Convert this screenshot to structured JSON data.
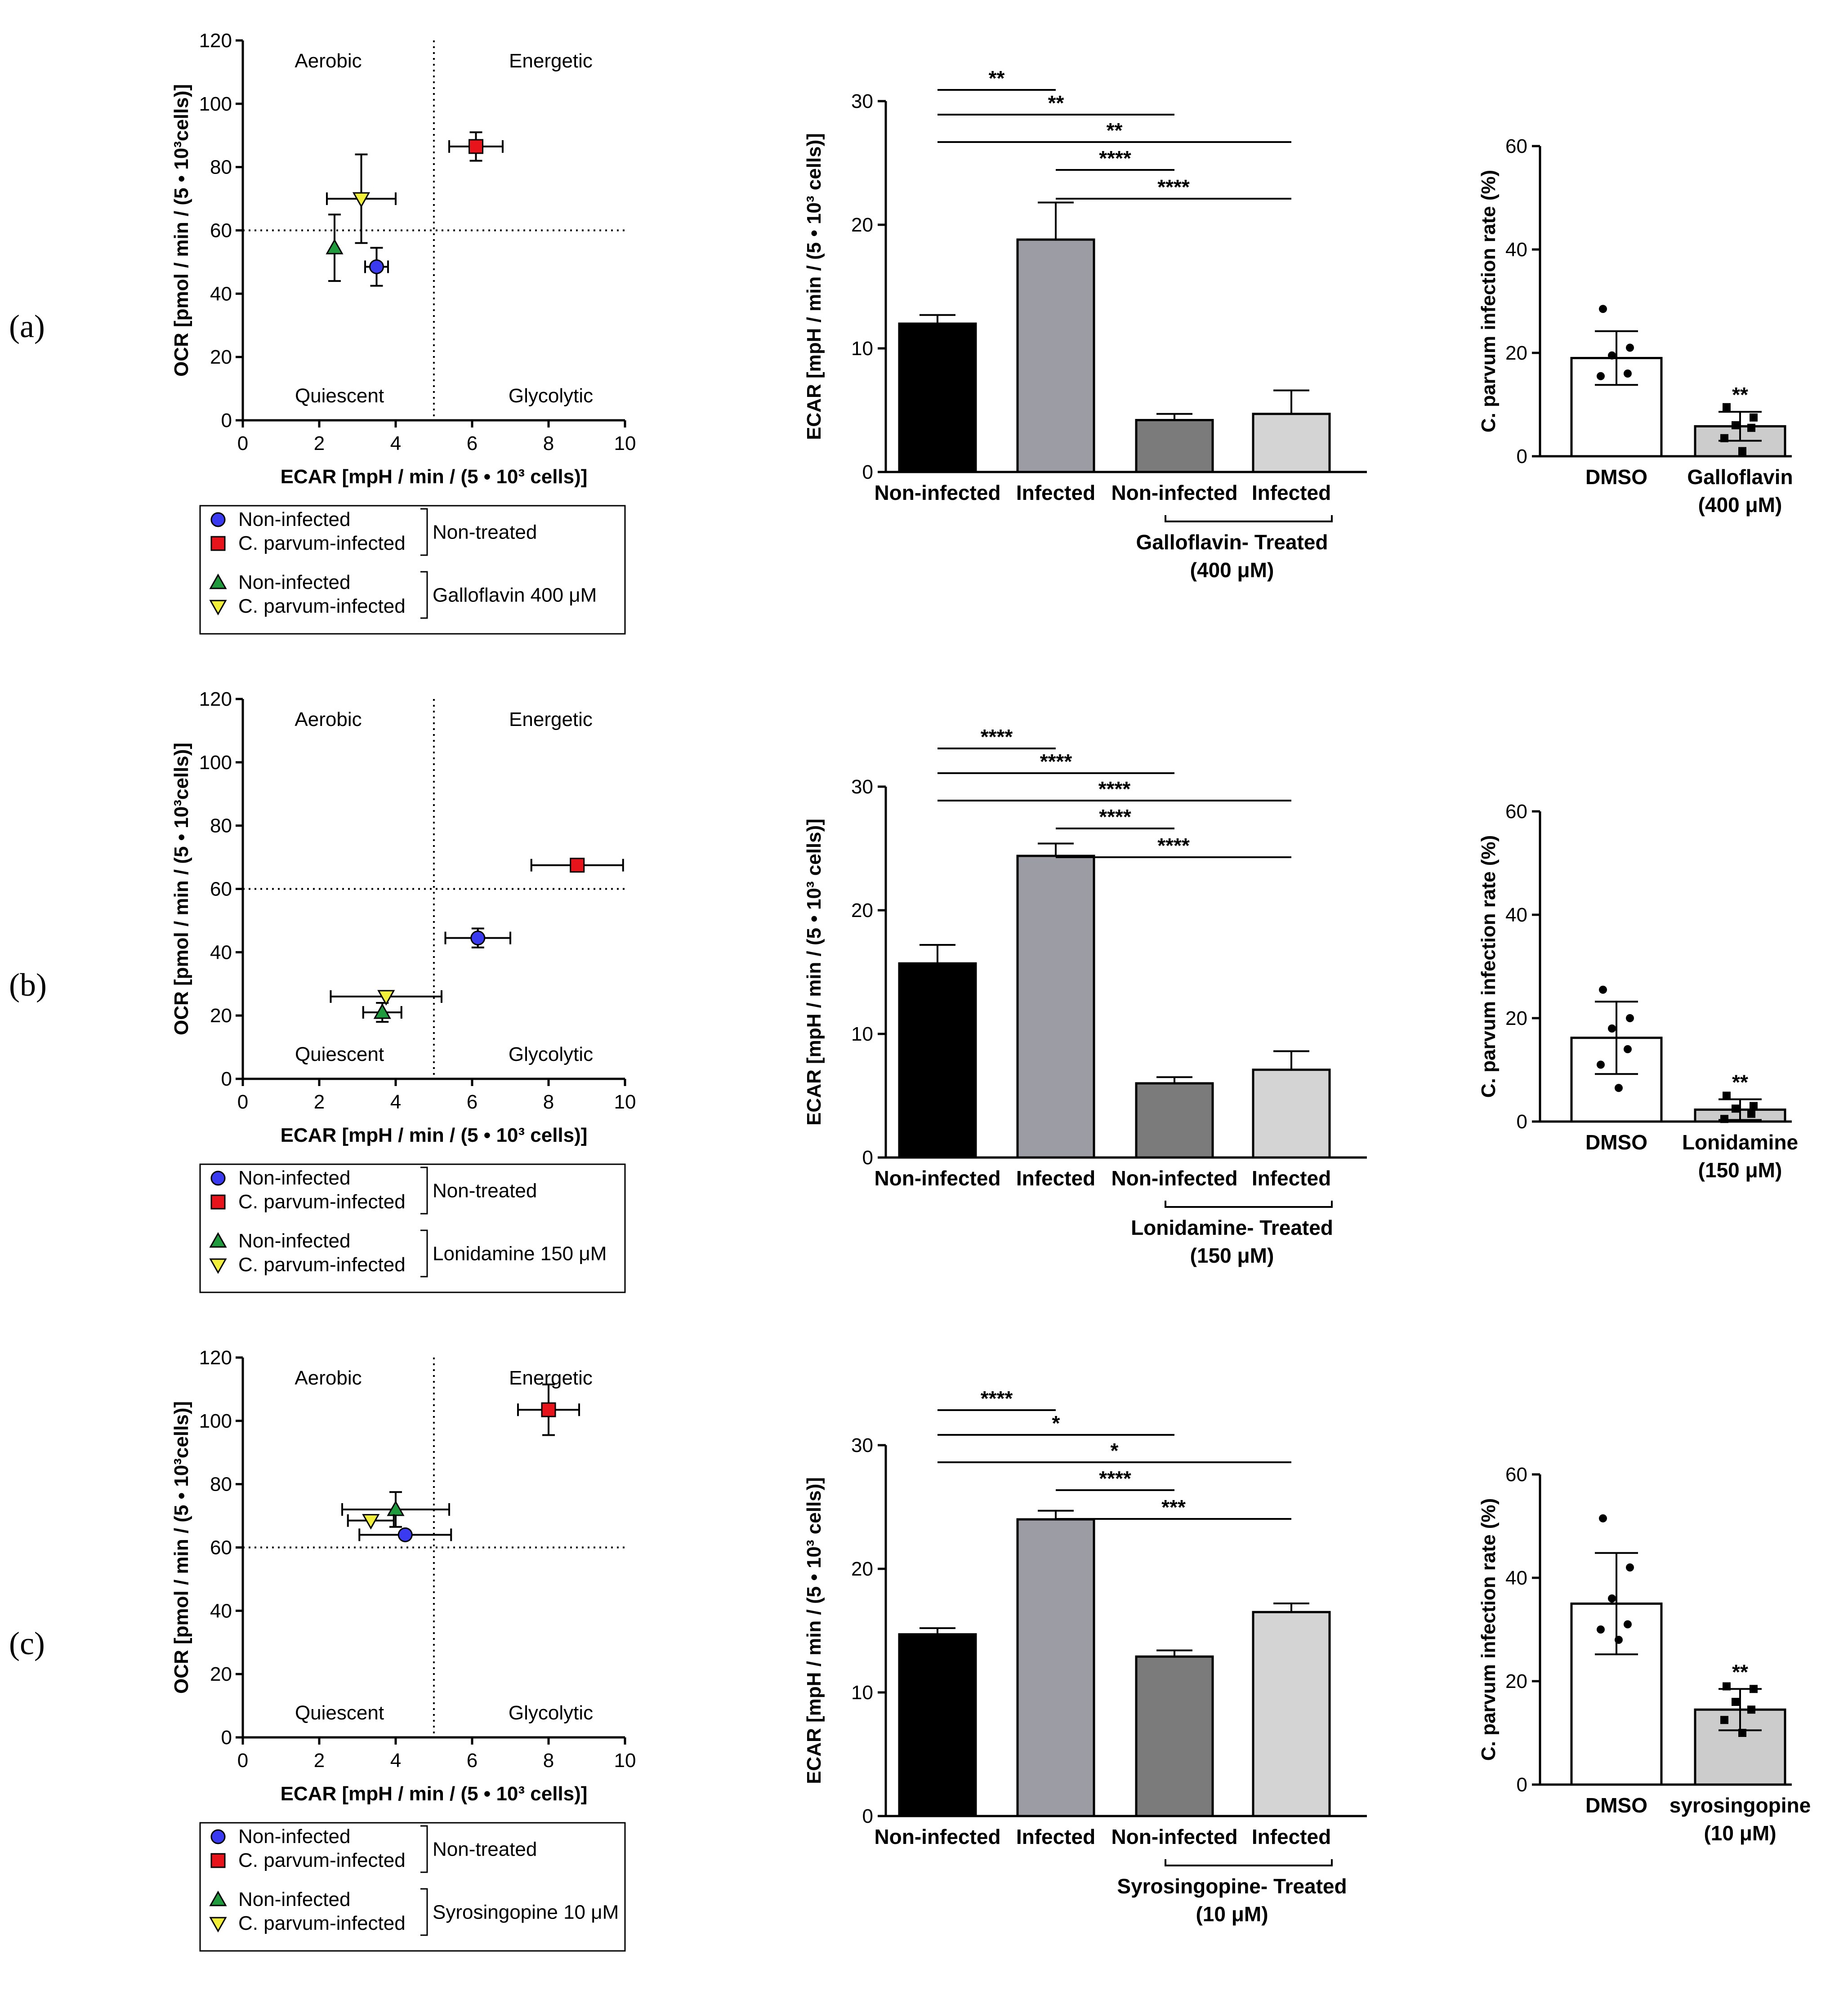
{
  "rows": [
    {
      "label": "(a)",
      "phenogram": {
        "quadrants": [
          "Aerobic",
          "Energetic",
          "Quiescent",
          "Glycolytic"
        ],
        "xlabel": "ECAR  [mpH / min / (5 • 10³ cells)]",
        "ylabel": "OCR [pmol / min / (5 • 10³cells)]",
        "xticks": [
          "0",
          "2",
          "4",
          "6",
          "8",
          "10"
        ],
        "yticks": [
          "0",
          "20",
          "40",
          "60",
          "80",
          "100",
          "120"
        ],
        "legend": {
          "entries": [
            "Non-infected",
            "C. parvum-infected",
            "Non-infected",
            "C. parvum-infected"
          ],
          "group1": "Non-treated",
          "group2": "Galloflavin 400 μM"
        }
      },
      "ecar": {
        "yticks": [
          "0",
          "10",
          "20",
          "30"
        ],
        "ylabel": "ECAR [mpH / min / (5 • 10³ cells)]",
        "categories": [
          "Non-infected",
          "Infected",
          "Non-infected",
          "Infected"
        ],
        "treatment": [
          "Galloflavin- Treated",
          "(400 μM)"
        ],
        "sig": [
          "**",
          "**",
          "**",
          "****",
          "****"
        ]
      },
      "infection": {
        "yticks": [
          "0",
          "20",
          "40",
          "60"
        ],
        "ylabel": "C. parvum infection rate (%)",
        "categories": [
          "DMSO",
          "Galloflavin"
        ],
        "sublabel": "(400 μM)",
        "sig": "**"
      }
    },
    {
      "label": "(b)",
      "phenogram": {
        "quadrants": [
          "Aerobic",
          "Energetic",
          "Quiescent",
          "Glycolytic"
        ],
        "xlabel": "ECAR  [mpH / min / (5 • 10³ cells)]",
        "ylabel": "OCR [pmol / min / (5 • 10³cells)]",
        "xticks": [
          "0",
          "2",
          "4",
          "6",
          "8",
          "10"
        ],
        "yticks": [
          "0",
          "20",
          "40",
          "60",
          "80",
          "100",
          "120"
        ],
        "legend": {
          "entries": [
            "Non-infected",
            "C. parvum-infected",
            "Non-infected",
            "C. parvum-infected"
          ],
          "group1": "Non-treated",
          "group2": "Lonidamine 150 μM"
        }
      },
      "ecar": {
        "yticks": [
          "0",
          "10",
          "20",
          "30"
        ],
        "ylabel": "ECAR [mpH / min / (5 • 10³ cells)]",
        "categories": [
          "Non-infected",
          "Infected",
          "Non-infected",
          "Infected"
        ],
        "treatment": [
          "Lonidamine- Treated",
          "(150 μM)"
        ],
        "sig": [
          "****",
          "****",
          "****",
          "****",
          "****"
        ]
      },
      "infection": {
        "yticks": [
          "0",
          "20",
          "40",
          "60"
        ],
        "ylabel": "C. parvum infection rate (%)",
        "categories": [
          "DMSO",
          "Lonidamine"
        ],
        "sublabel": "(150 μM)",
        "sig": "**"
      }
    },
    {
      "label": "(c)",
      "phenogram": {
        "quadrants": [
          "Aerobic",
          "Energetic",
          "Quiescent",
          "Glycolytic"
        ],
        "xlabel": "ECAR  [mpH / min / (5 • 10³ cells)]",
        "ylabel": "OCR [pmol / min / (5 • 10³cells)]",
        "xticks": [
          "0",
          "2",
          "4",
          "6",
          "8",
          "10"
        ],
        "yticks": [
          "0",
          "20",
          "40",
          "60",
          "80",
          "100",
          "120"
        ],
        "legend": {
          "entries": [
            "Non-infected",
            "C. parvum-infected",
            "Non-infected",
            "C. parvum-infected"
          ],
          "group1": "Non-treated",
          "group2": "Syrosingopine 10 μM"
        }
      },
      "ecar": {
        "yticks": [
          "0",
          "10",
          "20",
          "30"
        ],
        "ylabel": "ECAR [mpH / min / (5 • 10³ cells)]",
        "categories": [
          "Non-infected",
          "Infected",
          "Non-infected",
          "Infected"
        ],
        "treatment": [
          "Syrosingopine- Treated",
          "(10 μM)"
        ],
        "sig": [
          "****",
          "*",
          "*",
          "****",
          "***"
        ]
      },
      "infection": {
        "yticks": [
          "0",
          "20",
          "40",
          "60"
        ],
        "ylabel": "C. parvum infection rate (%)",
        "categories": [
          "DMSO",
          "syrosingopine"
        ],
        "sublabel": "(10 μM)",
        "sig": "**"
      }
    }
  ],
  "colors": {
    "non_infected": "#3a3af0",
    "infected": "#e8141c",
    "treated_non_infected": "#1f9a3c",
    "treated_infected": "#f2ef3a",
    "bar_black": "#000000",
    "bar_mid": "#9c9ca4",
    "bar_dark": "#7b7b7b",
    "bar_light": "#d4d4d4",
    "inf_bar": "#cccccc"
  },
  "chart_data": [
    {
      "type": "scatter",
      "panel": "(a) phenogram",
      "xlim": [
        0,
        10
      ],
      "ylim": [
        0,
        120
      ],
      "threshold_x": 5,
      "threshold_y": 60,
      "series": [
        {
          "name": "Non-infected (Non-treated)",
          "x": 3.5,
          "y": 48.5,
          "xerr": 0.3,
          "yerr": 6
        },
        {
          "name": "C. parvum-infected (Non-treated)",
          "x": 6.1,
          "y": 86.5,
          "xerr": 0.7,
          "yerr": 4.5
        },
        {
          "name": "Non-infected (Galloflavin 400 μM)",
          "x": 2.4,
          "y": 54.5,
          "xerr": 0,
          "yerr": 10.5
        },
        {
          "name": "C. parvum-infected (Galloflavin 400 μM)",
          "x": 3.1,
          "y": 70,
          "xerr": 0.9,
          "yerr": 14
        }
      ]
    },
    {
      "type": "bar",
      "panel": "(a) ECAR",
      "ylim": [
        0,
        30
      ],
      "categories": [
        "Non-infected",
        "Infected",
        "Non-infected",
        "Infected"
      ],
      "values": [
        12,
        18.8,
        4.2,
        4.7
      ],
      "errors": [
        0.7,
        3,
        0.5,
        1.9
      ]
    },
    {
      "type": "bar",
      "panel": "(a) infection",
      "ylim": [
        0,
        60
      ],
      "categories": [
        "DMSO",
        "Galloflavin"
      ],
      "values": [
        19,
        5.8
      ],
      "errors": [
        5.2,
        2.8
      ],
      "points": [
        [
          28.5,
          21,
          19.5,
          16,
          15.5
        ],
        [
          9.5,
          7.5,
          6,
          5.5,
          3.5,
          1
        ]
      ]
    },
    {
      "type": "scatter",
      "panel": "(b) phenogram",
      "xlim": [
        0,
        10
      ],
      "ylim": [
        0,
        120
      ],
      "threshold_x": 5,
      "threshold_y": 60,
      "series": [
        {
          "name": "Non-infected (Non-treated)",
          "x": 6.15,
          "y": 44.5,
          "xerr": 0.85,
          "yerr": 3
        },
        {
          "name": "C. parvum-infected (Non-treated)",
          "x": 8.75,
          "y": 67.5,
          "xerr": 1.2,
          "yerr": 0
        },
        {
          "name": "Non-infected (Lonidamine 150 μM)",
          "x": 3.65,
          "y": 21,
          "xerr": 0.5,
          "yerr": 3
        },
        {
          "name": "C. parvum-infected (Lonidamine 150 μM)",
          "x": 3.75,
          "y": 26,
          "xerr": 1.45,
          "yerr": 0
        }
      ]
    },
    {
      "type": "bar",
      "panel": "(b) ECAR",
      "ylim": [
        0,
        30
      ],
      "categories": [
        "Non-infected",
        "Infected",
        "Non-infected",
        "Infected"
      ],
      "values": [
        15.7,
        24.4,
        6,
        7.1
      ],
      "errors": [
        1.5,
        1,
        0.5,
        1.5
      ]
    },
    {
      "type": "bar",
      "panel": "(b) infection",
      "ylim": [
        0,
        60
      ],
      "categories": [
        "DMSO",
        "Lonidamine"
      ],
      "values": [
        16.2,
        2.3
      ],
      "errors": [
        7,
        2
      ],
      "points": [
        [
          25.5,
          20,
          18,
          14,
          11,
          6.5
        ],
        [
          5,
          3,
          2.5,
          1.5,
          0.5
        ]
      ]
    },
    {
      "type": "scatter",
      "panel": "(c) phenogram",
      "xlim": [
        0,
        10
      ],
      "ylim": [
        0,
        120
      ],
      "threshold_x": 5,
      "threshold_y": 60,
      "series": [
        {
          "name": "Non-infected (Non-treated)",
          "x": 4.25,
          "y": 64,
          "xerr": 1.2,
          "yerr": 0
        },
        {
          "name": "C. parvum-infected (Non-treated)",
          "x": 8,
          "y": 103.5,
          "xerr": 0.8,
          "yerr": 8
        },
        {
          "name": "Non-infected (Syrosingopine 10 μM)",
          "x": 4,
          "y": 72,
          "xerr": 1.4,
          "yerr": 5.5
        },
        {
          "name": "C. parvum-infected (Syrosingopine 10 μM)",
          "x": 3.35,
          "y": 68.5,
          "xerr": 0.6,
          "yerr": 0
        }
      ]
    },
    {
      "type": "bar",
      "panel": "(c) ECAR",
      "ylim": [
        0,
        30
      ],
      "categories": [
        "Non-infected",
        "Infected",
        "Non-infected",
        "Infected"
      ],
      "values": [
        14.7,
        24,
        12.9,
        16.5
      ],
      "errors": [
        0.5,
        0.7,
        0.5,
        0.7
      ]
    },
    {
      "type": "bar",
      "panel": "(c) infection",
      "ylim": [
        0,
        60
      ],
      "categories": [
        "DMSO",
        "syrosingopine"
      ],
      "values": [
        35,
        14.5
      ],
      "errors": [
        9.8,
        4
      ],
      "points": [
        [
          51.5,
          42,
          36,
          31,
          30,
          28
        ],
        [
          19,
          18.5,
          16,
          14.5,
          12.5,
          10
        ]
      ]
    }
  ]
}
